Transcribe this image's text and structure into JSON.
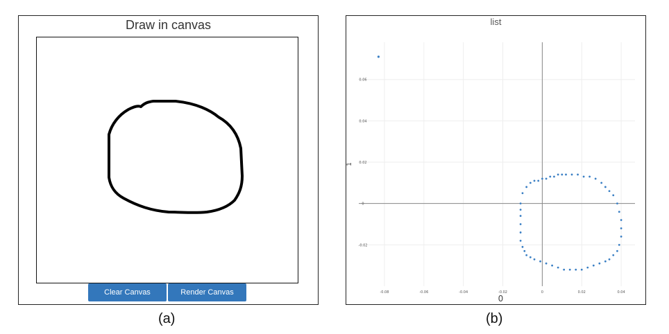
{
  "captions": {
    "a": "(a)",
    "b": "(b)"
  },
  "draw_panel": {
    "title": "Draw in canvas",
    "buttons": {
      "clear": "Clear Canvas",
      "render": "Render Canvas"
    },
    "stroke_color": "#000000"
  },
  "plot_panel": {
    "title": "list",
    "button_color": "#3377bb"
  },
  "chart_data": {
    "type": "scatter",
    "title": "list",
    "xlabel": "0",
    "ylabel": "1",
    "xlim": [
      -0.093,
      0.047
    ],
    "ylim": [
      -0.04,
      0.078
    ],
    "x_ticks": [
      -0.08,
      -0.06,
      -0.04,
      -0.02,
      0,
      0.02,
      0.04
    ],
    "x_tick_labels": [
      "-0.08",
      "-0.06",
      "-0.04",
      "-0.02",
      "0",
      "0.02",
      "0.04"
    ],
    "y_ticks": [
      -0.02,
      0,
      0.02,
      0.04,
      0.06
    ],
    "y_tick_labels": [
      "-0.02",
      "0",
      "0.02",
      "0.04",
      "0.06"
    ],
    "grid": true,
    "point_color": "#3a7fc4",
    "outlier": {
      "x": -0.083,
      "y": 0.071
    },
    "series": [
      {
        "x": [
          -0.011,
          -0.01,
          -0.008,
          -0.006,
          -0.004,
          -0.002,
          0.0,
          0.002,
          0.004,
          0.006,
          0.008,
          0.01,
          0.012,
          0.015,
          0.018,
          0.021,
          0.024,
          0.027,
          0.03,
          0.032,
          0.034,
          0.036,
          0.038,
          0.039,
          0.04,
          0.04,
          0.04,
          0.039,
          0.038,
          0.036,
          0.034,
          0.032,
          0.029,
          0.026,
          0.023,
          0.02,
          0.017,
          0.014,
          0.011,
          0.008,
          0.005,
          0.002,
          -0.001,
          -0.004,
          -0.006,
          -0.008,
          -0.009,
          -0.01,
          -0.011,
          -0.011,
          -0.011,
          -0.011,
          -0.011
        ],
        "y": [
          0.0,
          0.005,
          0.008,
          0.01,
          0.011,
          0.011,
          0.012,
          0.012,
          0.013,
          0.013,
          0.014,
          0.014,
          0.014,
          0.014,
          0.014,
          0.013,
          0.013,
          0.012,
          0.01,
          0.008,
          0.006,
          0.004,
          0.0,
          -0.004,
          -0.008,
          -0.012,
          -0.016,
          -0.02,
          -0.023,
          -0.025,
          -0.027,
          -0.028,
          -0.029,
          -0.03,
          -0.031,
          -0.032,
          -0.032,
          -0.032,
          -0.032,
          -0.031,
          -0.03,
          -0.029,
          -0.028,
          -0.027,
          -0.026,
          -0.025,
          -0.023,
          -0.021,
          -0.018,
          -0.014,
          -0.01,
          -0.006,
          -0.003
        ]
      }
    ]
  }
}
